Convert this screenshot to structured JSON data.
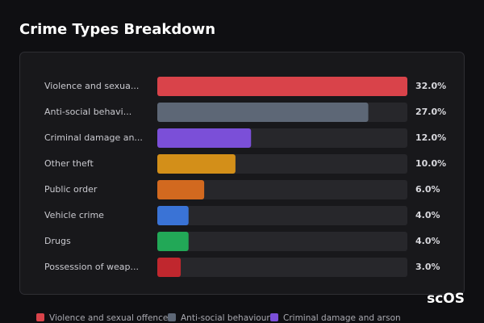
{
  "chart_data": {
    "type": "hbar",
    "title": "Crime Types Breakdown",
    "categories": [
      "Violence and sexua...",
      "Anti-social behavi...",
      "Criminal damage an...",
      "Other theft",
      "Public order",
      "Vehicle crime",
      "Drugs",
      "Possession of weap..."
    ],
    "values": [
      32.0,
      27.0,
      12.0,
      10.0,
      6.0,
      4.0,
      4.0,
      3.0
    ],
    "value_labels": [
      "32.0%",
      "27.0%",
      "12.0%",
      "10.0%",
      "6.0%",
      "4.0%",
      "4.0%",
      "3.0%"
    ],
    "colors": [
      "#d9434a",
      "#5d6776",
      "#7b4fd8",
      "#d38f19",
      "#d2691f",
      "#3a73d6",
      "#22a857",
      "#c0272e"
    ],
    "legend": [
      "Violence and sexual offences",
      "Anti-social behaviour",
      "Criminal damage and arson"
    ]
  },
  "watermark": "scOS"
}
